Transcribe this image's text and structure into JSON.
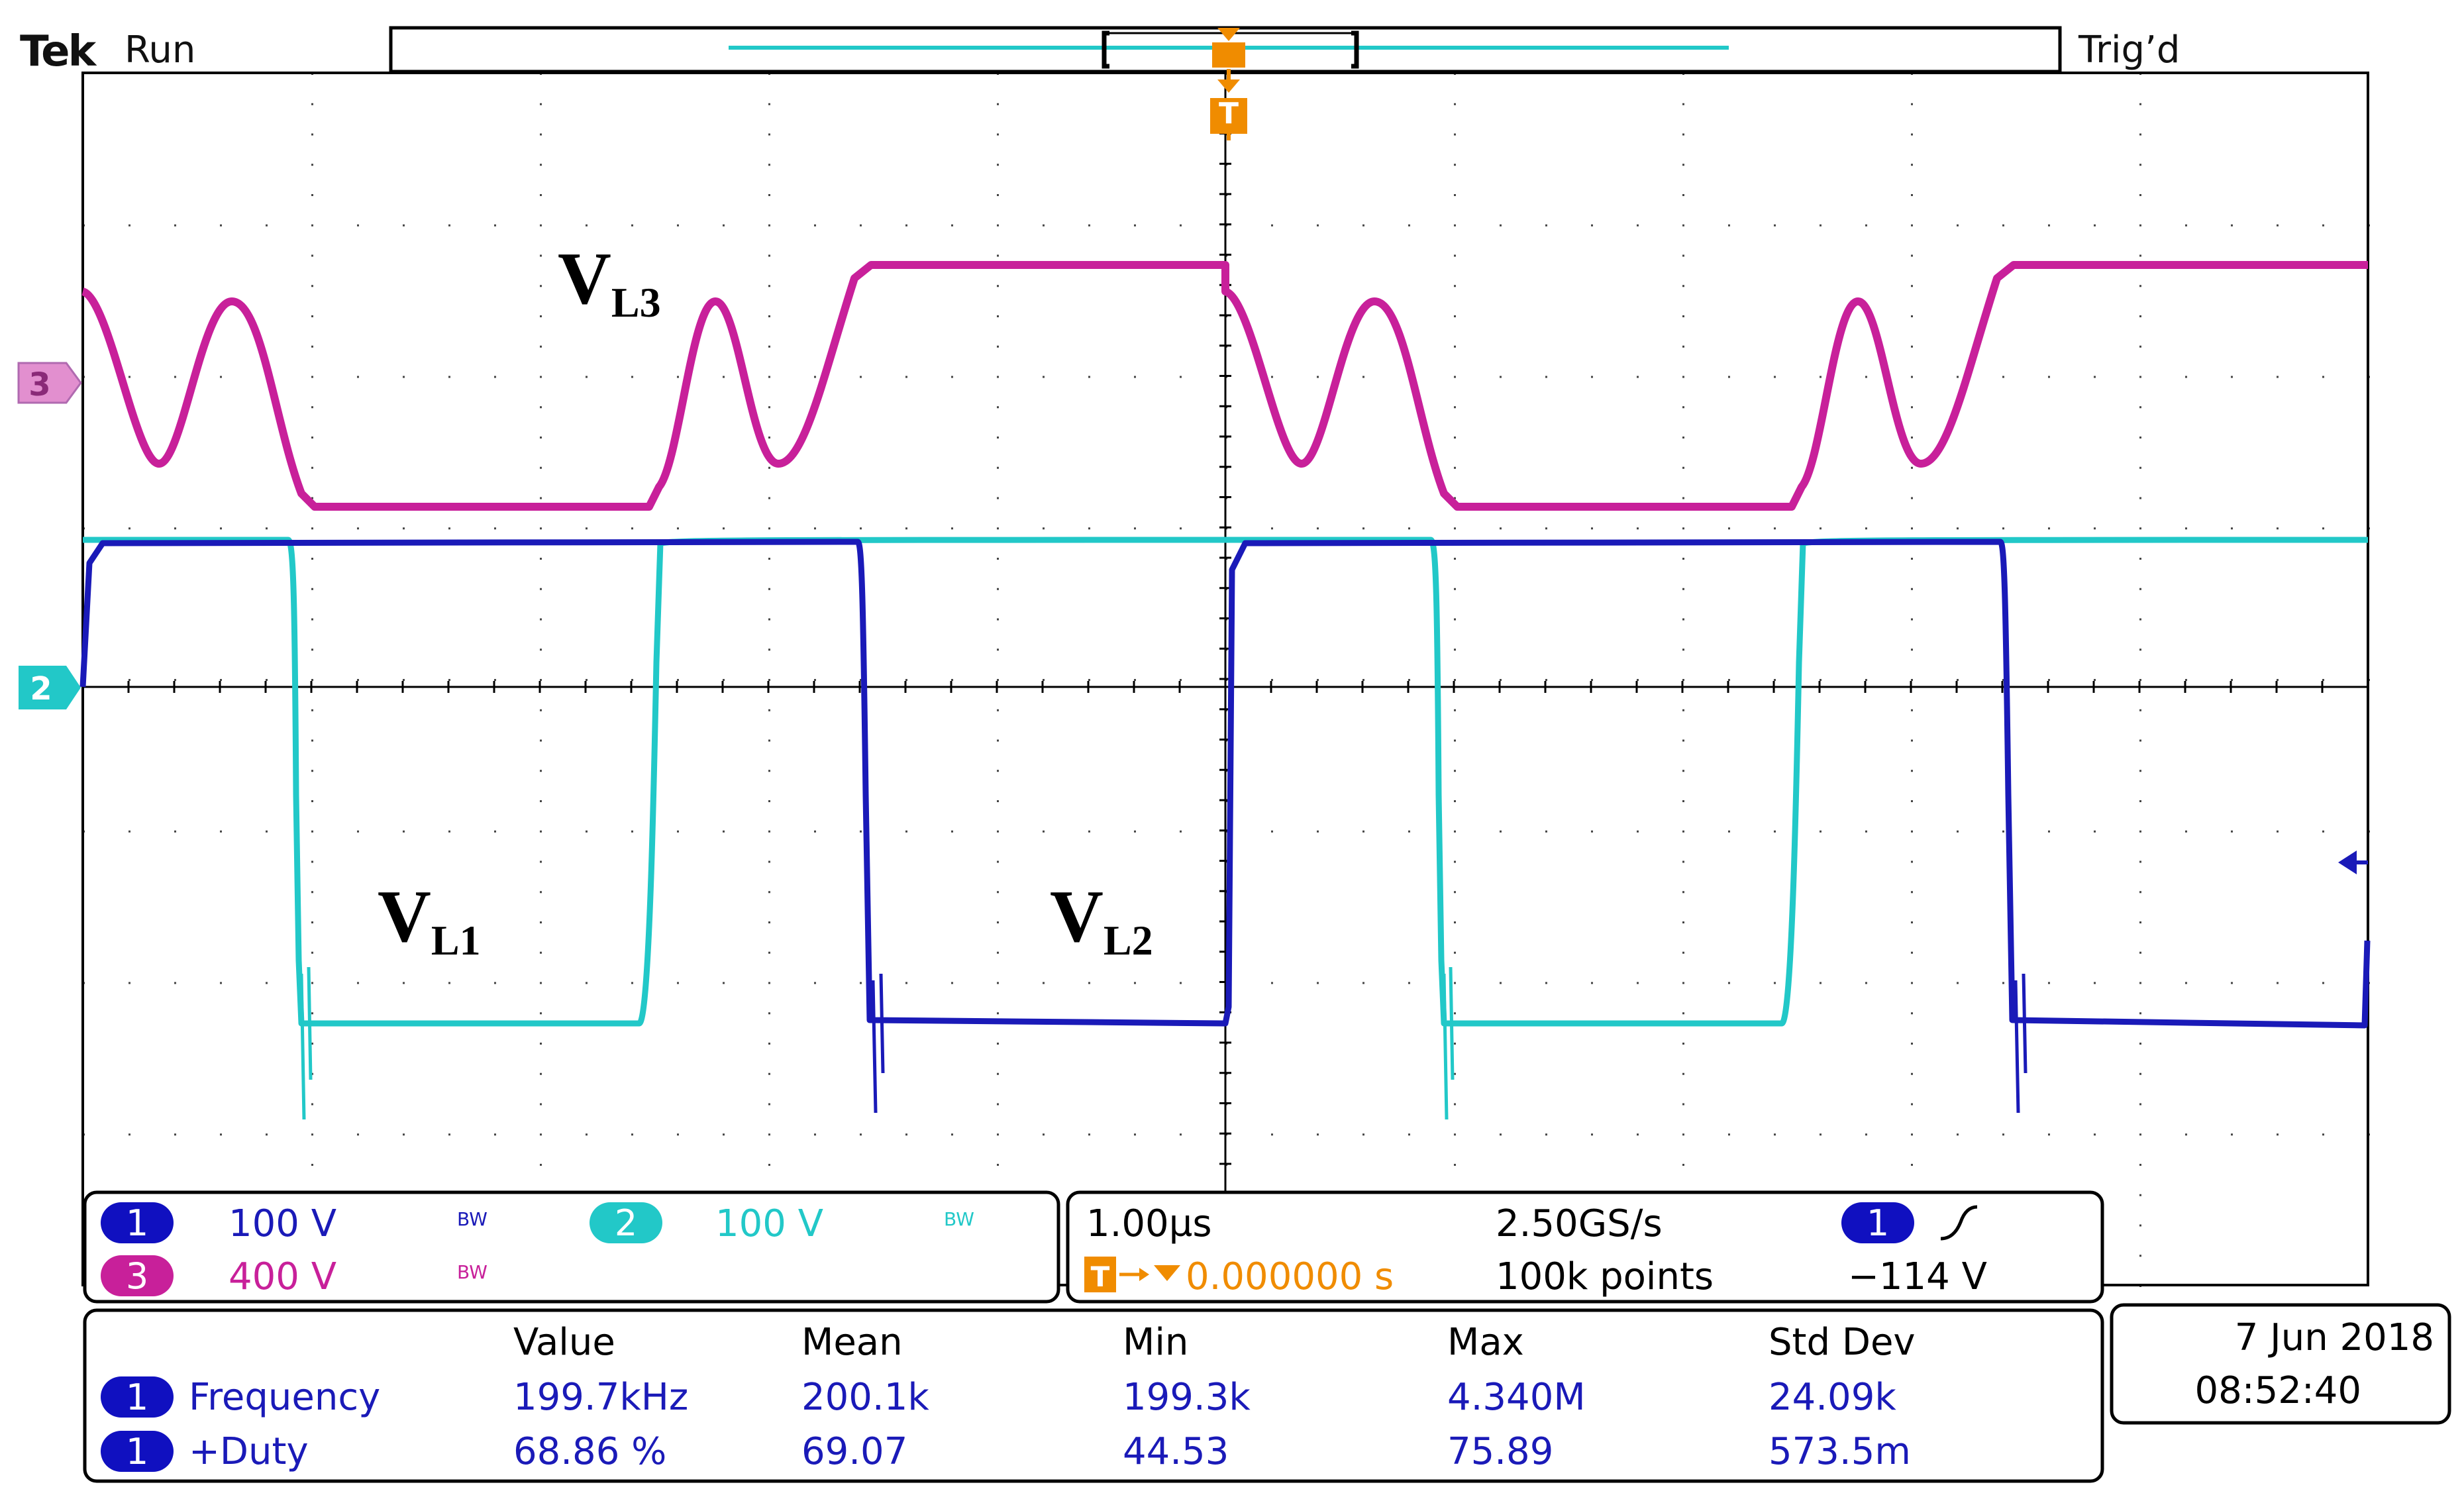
{
  "header": {
    "brand": "Tek",
    "acq_state": "Run",
    "trigger_status": "Trig’d",
    "trigger_marker": "T"
  },
  "channel_markers": {
    "ch3": "3",
    "ch2": "2"
  },
  "trace_labels": {
    "vl3": {
      "main": "V",
      "sub": "L3"
    },
    "vl1": {
      "main": "V",
      "sub": "L1"
    },
    "vl2": {
      "main": "V",
      "sub": "L2"
    }
  },
  "channels": [
    {
      "id": "1",
      "scale": "100 V",
      "bw": "BW",
      "color": "#1a1ab8"
    },
    {
      "id": "2",
      "scale": "100 V",
      "bw": "BW",
      "color": "#22c8c8"
    },
    {
      "id": "3",
      "scale": "400 V",
      "bw": "BW",
      "color": "#c8209a"
    }
  ],
  "timebase": {
    "time_per_div": "1.00µs",
    "sample_rate": "2.50GS/s",
    "trigger_position": "0.000000 s",
    "record_length": "100k points",
    "trigger_source": "1",
    "trigger_level": "−114 V"
  },
  "measurements": {
    "headers": [
      "Value",
      "Mean",
      "Min",
      "Max",
      "Std Dev"
    ],
    "rows": [
      {
        "source": "1",
        "name": "Frequency",
        "value": "199.7kHz",
        "mean": "200.1k",
        "min": "199.3k",
        "max": "4.340M",
        "std": "24.09k"
      },
      {
        "source": "1",
        "name": "+Duty",
        "value": "68.86 %",
        "mean": "69.07",
        "min": "44.53",
        "max": "75.89",
        "std": "573.5m"
      }
    ]
  },
  "datetime": {
    "date": "7 Jun  2018",
    "time": "08:52:40"
  },
  "colors": {
    "ch1": "#1a1ab8",
    "ch2": "#22c8c8",
    "ch3": "#c8209a",
    "trigger": "#f08c00",
    "grid": "#000000"
  }
}
